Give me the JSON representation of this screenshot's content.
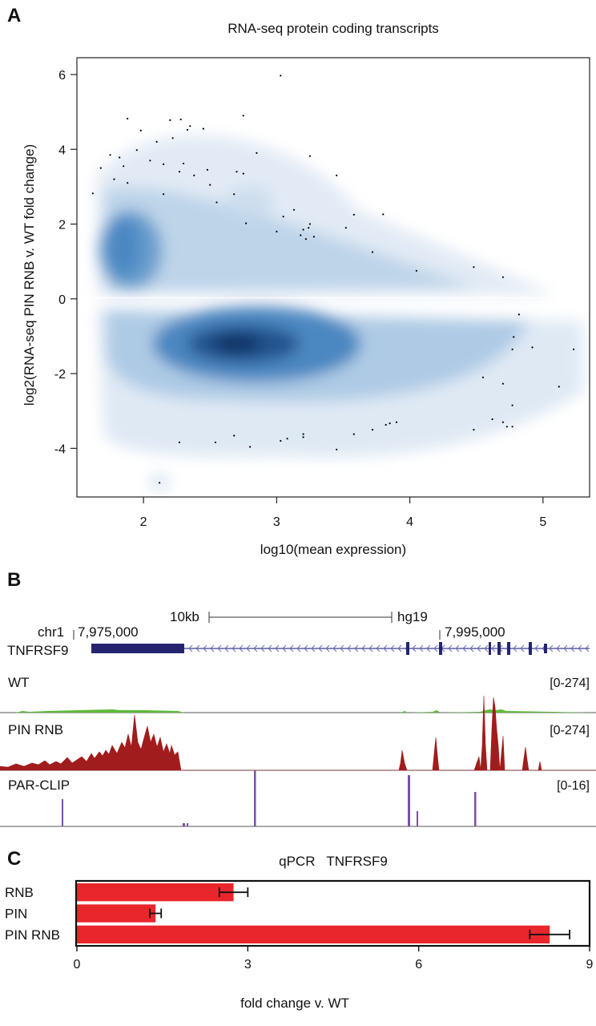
{
  "panel_a": {
    "letter": "A",
    "chart_data": {
      "type": "scatter",
      "title": "RNA-seq protein coding transcripts",
      "xlabel": "log10(mean expression)",
      "ylabel": "log2(RNA-seq PIN RNB v. WT fold change)",
      "xlim": [
        1.5,
        5.35
      ],
      "ylim": [
        -5.3,
        6.45
      ],
      "x_ticks": [
        "2",
        "3",
        "4",
        "5"
      ],
      "y_ticks": [
        "-4",
        "-2",
        "0",
        "2",
        "4",
        "6"
      ],
      "density": {
        "upper": {
          "x_range": [
            1.65,
            5.1
          ],
          "y_range": [
            0.1,
            5.2
          ],
          "peak_x": 1.9,
          "peak_y": 1.3
        },
        "lower": {
          "x_range": [
            1.65,
            5.3
          ],
          "y_range": [
            -4.9,
            -0.3
          ],
          "peak_x": 2.75,
          "peak_y": -1.2
        }
      },
      "points": [
        [
          3.03,
          5.97
        ],
        [
          2.75,
          4.9
        ],
        [
          2.2,
          4.78
        ],
        [
          1.88,
          4.82
        ],
        [
          2.28,
          4.8
        ],
        [
          2.35,
          4.62
        ],
        [
          2.33,
          4.52
        ],
        [
          2.45,
          4.55
        ],
        [
          1.98,
          4.5
        ],
        [
          2.1,
          4.2
        ],
        [
          1.95,
          3.98
        ],
        [
          2.22,
          4.3
        ],
        [
          1.75,
          3.85
        ],
        [
          1.82,
          3.78
        ],
        [
          2.3,
          3.62
        ],
        [
          1.68,
          3.5
        ],
        [
          1.85,
          3.55
        ],
        [
          2.05,
          3.7
        ],
        [
          2.15,
          3.6
        ],
        [
          2.27,
          3.4
        ],
        [
          2.38,
          3.3
        ],
        [
          1.78,
          3.2
        ],
        [
          1.88,
          3.1
        ],
        [
          2.48,
          3.45
        ],
        [
          2.5,
          3.05
        ],
        [
          2.7,
          3.4
        ],
        [
          2.75,
          3.35
        ],
        [
          2.85,
          3.9
        ],
        [
          3.25,
          3.82
        ],
        [
          3.45,
          3.3
        ],
        [
          1.62,
          2.82
        ],
        [
          2.15,
          2.8
        ],
        [
          2.55,
          2.58
        ],
        [
          2.68,
          2.8
        ],
        [
          2.77,
          2.02
        ],
        [
          3.05,
          2.2
        ],
        [
          3.13,
          2.38
        ],
        [
          3.2,
          1.85
        ],
        [
          3.24,
          1.9
        ],
        [
          3.18,
          1.7
        ],
        [
          3.25,
          2.0
        ],
        [
          3.0,
          1.8
        ],
        [
          3.22,
          1.6
        ],
        [
          3.28,
          1.66
        ],
        [
          3.52,
          1.9
        ],
        [
          3.58,
          2.25
        ],
        [
          3.8,
          2.26
        ],
        [
          3.72,
          1.25
        ],
        [
          4.05,
          0.75
        ],
        [
          4.48,
          0.85
        ],
        [
          4.7,
          0.58
        ],
        [
          4.82,
          -0.42
        ],
        [
          4.78,
          -1.02
        ],
        [
          4.77,
          -1.35
        ],
        [
          4.92,
          -1.3
        ],
        [
          5.23,
          -1.35
        ],
        [
          4.55,
          -2.1
        ],
        [
          5.12,
          -2.35
        ],
        [
          4.7,
          -2.27
        ],
        [
          4.77,
          -2.85
        ],
        [
          4.62,
          -3.22
        ],
        [
          4.7,
          -3.3
        ],
        [
          4.73,
          -3.42
        ],
        [
          4.77,
          -3.42
        ],
        [
          4.48,
          -3.5
        ],
        [
          2.27,
          -3.84
        ],
        [
          2.54,
          -3.84
        ],
        [
          2.68,
          -3.66
        ],
        [
          2.8,
          -3.96
        ],
        [
          3.03,
          -3.8
        ],
        [
          3.08,
          -3.74
        ],
        [
          3.2,
          -3.62
        ],
        [
          3.2,
          -3.7
        ],
        [
          3.45,
          -4.03
        ],
        [
          3.58,
          -3.62
        ],
        [
          3.72,
          -3.5
        ],
        [
          3.82,
          -3.37
        ],
        [
          3.85,
          -3.33
        ],
        [
          3.9,
          -3.3
        ],
        [
          2.12,
          -4.92
        ]
      ]
    }
  },
  "panel_b": {
    "letter": "B",
    "scale_label": "10kb",
    "assembly": "hg19",
    "chrom": "chr1",
    "coord_left": "7,975,000",
    "coord_right": "7,995,000",
    "gene": "TNFRSF9",
    "tracks": [
      {
        "name": "WT",
        "range": "[0-274]",
        "color": "#5dbb3a"
      },
      {
        "name": "PIN RNB",
        "range": "[0-274]",
        "color": "#a11c1c"
      },
      {
        "name": "PAR-CLIP",
        "range": "[0-16]",
        "color": "#7b52a0"
      }
    ]
  },
  "panel_c": {
    "letter": "C",
    "chart_data": {
      "type": "bar",
      "orientation": "horizontal",
      "title": "qPCR   TNFRSF9",
      "xlabel": "fold change v. WT",
      "categories": [
        "RNB",
        "PIN",
        "PIN RNB"
      ],
      "values": [
        2.75,
        1.38,
        8.3
      ],
      "errors": [
        0.25,
        0.1,
        0.35
      ],
      "xlim": [
        0,
        9
      ],
      "x_ticks": [
        "0",
        "3",
        "6",
        "9"
      ],
      "bar_color": "#e8262b"
    }
  }
}
